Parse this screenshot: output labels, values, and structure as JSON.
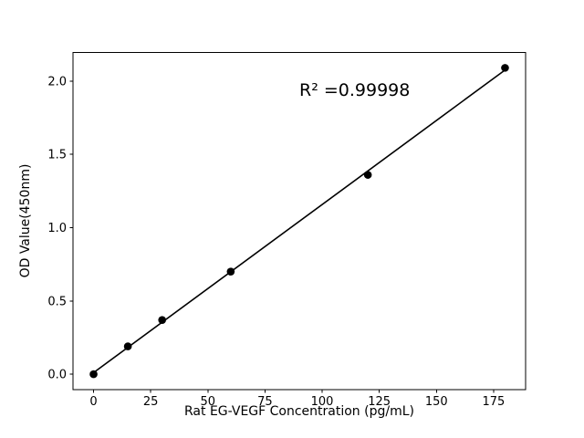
{
  "chart_data": {
    "type": "scatter",
    "title": "",
    "xlabel": "Rat EG-VEGF Concentration (pg/mL)",
    "ylabel": "OD Value(450nm)",
    "x": [
      0,
      15,
      30,
      60,
      120,
      180
    ],
    "y": [
      0.0,
      0.19,
      0.37,
      0.7,
      1.36,
      2.09
    ],
    "fit_line": true,
    "annotation": {
      "text": "R² =0.99998",
      "x": 90,
      "y": 1.93
    },
    "xticks": [
      0,
      25,
      50,
      75,
      100,
      125,
      150,
      175
    ],
    "xtick_labels": [
      "0",
      "25",
      "50",
      "75",
      "100",
      "125",
      "150",
      "175"
    ],
    "yticks": [
      0.0,
      0.5,
      1.0,
      1.5,
      2.0
    ],
    "ytick_labels": [
      "0.0",
      "0.5",
      "1.0",
      "1.5",
      "2.0"
    ],
    "xlim": [
      -9,
      189
    ],
    "ylim": [
      -0.1065,
      2.1945
    ],
    "marker_color": "#000000",
    "line_color": "#000000",
    "background": "#ffffff",
    "legend": "none",
    "grid": false
  }
}
